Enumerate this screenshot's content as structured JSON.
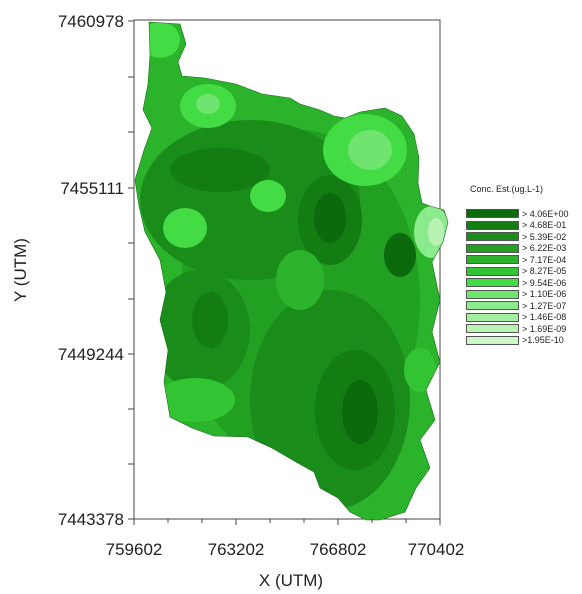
{
  "chart_data": {
    "type": "heatmap",
    "title": "",
    "xlabel": "X (UTM)",
    "ylabel": "Y (UTM)",
    "xlim": [
      759602,
      770402
    ],
    "ylim": [
      7443378,
      7460978
    ],
    "x_ticks": [
      "759602",
      "763202",
      "766802",
      "770402"
    ],
    "y_ticks": [
      "7460978",
      "7455111",
      "7449244",
      "7443378"
    ],
    "legend": {
      "title": "Conc. Est.(ug.L-1)",
      "placement": "right",
      "classes": [
        {
          "label": "> 4.06E+00",
          "color": "#0b6a0b"
        },
        {
          "label": "> 4.68E-01",
          "color": "#137c13"
        },
        {
          "label": "> 5.39E-02",
          "color": "#1a8c1a"
        },
        {
          "label": "> 6.22E-03",
          "color": "#22a022"
        },
        {
          "label": "> 7.17E-04",
          "color": "#2bb42b"
        },
        {
          "label": "> 8.27E-05",
          "color": "#33c433"
        },
        {
          "label": "> 9.54E-06",
          "color": "#44dc44"
        },
        {
          "label": "> 1.10E-06",
          "color": "#6fe46f"
        },
        {
          "label": "> 1.27E-07",
          "color": "#8bea8b"
        },
        {
          "label": "> 1.46E-08",
          "color": "#a3ef9f"
        },
        {
          "label": "> 1.69E-09",
          "color": "#b8f3b4"
        },
        {
          "label": ">1.95E-10",
          "color": "#cdf7c9"
        }
      ]
    }
  }
}
